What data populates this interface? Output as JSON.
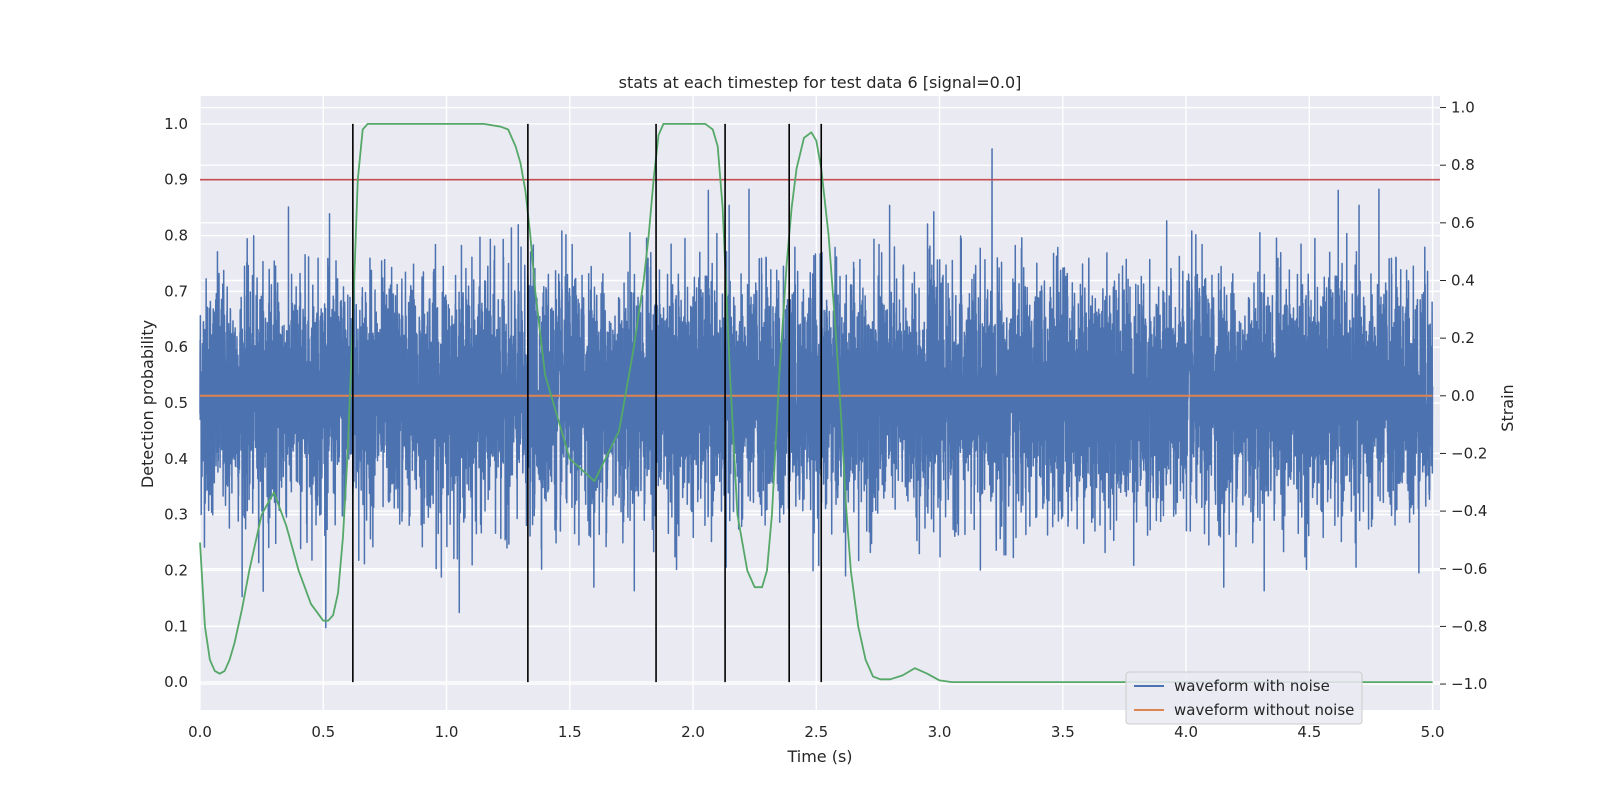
{
  "chart_data": {
    "type": "line",
    "title": "stats at each timestep for test data 6 [signal=0.0]",
    "xlabel": "Time (s)",
    "ylabel_left": "Detection probability",
    "ylabel_right": "Strain",
    "xlim": [
      0.0,
      5.03
    ],
    "ylim_left": [
      -0.05,
      1.05
    ],
    "ylim_right": [
      -1.09,
      1.04
    ],
    "x_ticks": [
      0.0,
      0.5,
      1.0,
      1.5,
      2.0,
      2.5,
      3.0,
      3.5,
      4.0,
      4.5,
      5.0
    ],
    "x_tick_labels": [
      "0.0",
      "0.5",
      "1.0",
      "1.5",
      "2.0",
      "2.5",
      "3.0",
      "3.5",
      "4.0",
      "4.5",
      "5.0"
    ],
    "y_left_ticks": [
      0.0,
      0.1,
      0.2,
      0.3,
      0.4,
      0.5,
      0.6,
      0.7,
      0.8,
      0.9,
      1.0
    ],
    "y_left_tick_labels": [
      "0.0",
      "0.1",
      "0.2",
      "0.3",
      "0.4",
      "0.5",
      "0.6",
      "0.7",
      "0.8",
      "0.9",
      "1.0"
    ],
    "y_right_ticks": [
      -1.0,
      -0.8,
      -0.6,
      -0.4,
      -0.2,
      0.0,
      0.2,
      0.4,
      0.6,
      0.8,
      1.0
    ],
    "y_right_tick_labels": [
      "−1.0",
      "−0.8",
      "−0.6",
      "−0.4",
      "−0.2",
      "0.0",
      "0.2",
      "0.4",
      "0.6",
      "0.8",
      "1.0"
    ],
    "grid": true,
    "legend_position": "lower-right",
    "threshold": {
      "axis": "left",
      "y": 0.9,
      "color": "#c44e52"
    },
    "vertical_markers": {
      "axis": "left",
      "y_range": [
        0.0,
        1.0
      ],
      "x": [
        0.62,
        1.33,
        1.85,
        2.13,
        2.39,
        2.52
      ],
      "color": "#000000"
    },
    "series": [
      {
        "name": "waveform with noise",
        "axis": "right",
        "color": "#4c72b0",
        "x_range": [
          0.0,
          5.0
        ],
        "sample_rate_hz": 2048,
        "amplitude_std": 0.2
      },
      {
        "name": "waveform without noise",
        "axis": "right",
        "color": "#dd8452",
        "x": [
          0.0,
          5.0
        ],
        "y": [
          0.0,
          0.0
        ]
      },
      {
        "axis": "left",
        "color": "#55a868",
        "x": [
          0.0,
          0.02,
          0.04,
          0.06,
          0.08,
          0.1,
          0.12,
          0.14,
          0.17,
          0.2,
          0.25,
          0.3,
          0.35,
          0.4,
          0.45,
          0.5,
          0.52,
          0.54,
          0.56,
          0.58,
          0.6,
          0.62,
          0.64,
          0.66,
          0.68,
          0.72,
          0.8,
          1.0,
          1.15,
          1.22,
          1.25,
          1.28,
          1.3,
          1.32,
          1.34,
          1.36,
          1.4,
          1.5,
          1.6,
          1.7,
          1.76,
          1.8,
          1.82,
          1.84,
          1.86,
          1.88,
          1.9,
          1.95,
          2.0,
          2.05,
          2.08,
          2.1,
          2.12,
          2.15,
          2.18,
          2.22,
          2.25,
          2.28,
          2.3,
          2.32,
          2.35,
          2.38,
          2.4,
          2.42,
          2.45,
          2.48,
          2.5,
          2.52,
          2.55,
          2.58,
          2.6,
          2.62,
          2.64,
          2.67,
          2.7,
          2.73,
          2.76,
          2.8,
          2.85,
          2.9,
          2.95,
          3.0,
          3.05,
          3.5,
          4.0,
          4.5,
          5.0
        ],
        "y": [
          0.25,
          0.1,
          0.04,
          0.02,
          0.015,
          0.02,
          0.04,
          0.07,
          0.13,
          0.2,
          0.3,
          0.34,
          0.28,
          0.2,
          0.14,
          0.11,
          0.11,
          0.12,
          0.16,
          0.26,
          0.42,
          0.65,
          0.9,
          0.99,
          1.0,
          1.0,
          1.0,
          1.0,
          1.0,
          0.995,
          0.99,
          0.96,
          0.93,
          0.88,
          0.8,
          0.7,
          0.55,
          0.4,
          0.36,
          0.45,
          0.6,
          0.72,
          0.8,
          0.9,
          0.98,
          1.0,
          1.0,
          1.0,
          1.0,
          1.0,
          0.99,
          0.96,
          0.85,
          0.55,
          0.3,
          0.2,
          0.17,
          0.17,
          0.2,
          0.3,
          0.55,
          0.75,
          0.85,
          0.92,
          0.975,
          0.985,
          0.97,
          0.92,
          0.8,
          0.62,
          0.48,
          0.32,
          0.2,
          0.1,
          0.04,
          0.01,
          0.005,
          0.005,
          0.012,
          0.025,
          0.015,
          0.003,
          0.0,
          0.0,
          0.0,
          0.0,
          0.0
        ]
      }
    ]
  }
}
